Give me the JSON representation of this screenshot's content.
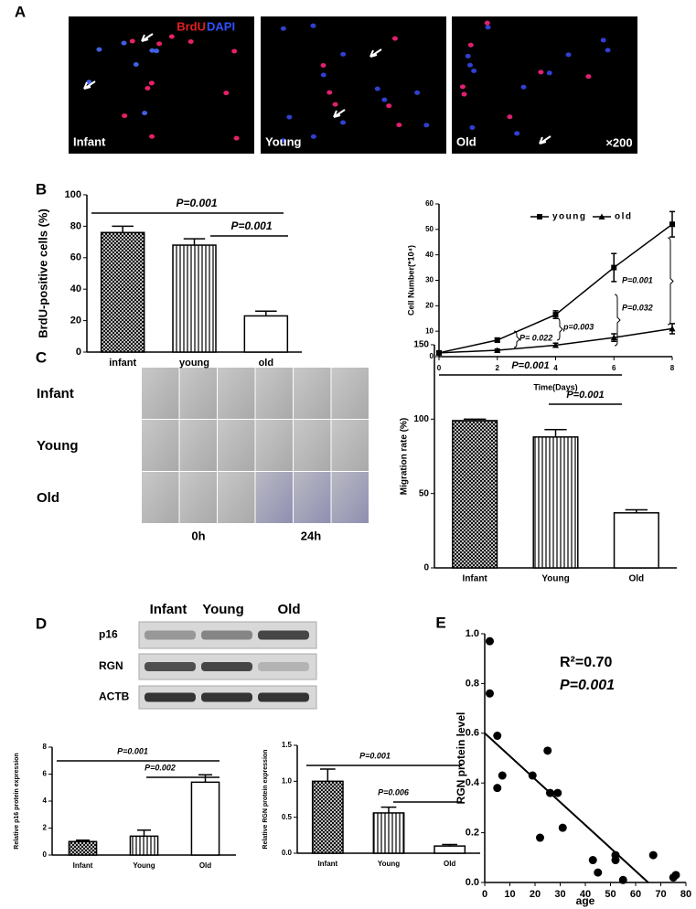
{
  "panels": [
    "A",
    "B",
    "C",
    "D",
    "E"
  ],
  "micrographs": {
    "stain": [
      "BrdU",
      "DAPI"
    ],
    "labels": [
      "Infant",
      "Young",
      "Old"
    ],
    "magnification": "×200"
  },
  "migration_images": {
    "rows": [
      "Infant",
      "Young",
      "Old"
    ],
    "times": [
      "0h",
      "24h"
    ]
  },
  "blot": {
    "columns": [
      "Infant",
      "Young",
      "Old"
    ],
    "rows": [
      "p16",
      "RGN",
      "ACTB"
    ]
  },
  "chart_data": [
    {
      "type": "bar",
      "ylabel": "BrdU-positive cells (%)",
      "categories": [
        "infant",
        "young",
        "old"
      ],
      "values": [
        76,
        68,
        23
      ],
      "errors": [
        4,
        4,
        3
      ],
      "patterns": [
        "crosshatch",
        "vertical",
        "none"
      ],
      "ylim": [
        0,
        100
      ],
      "yticks": [
        0,
        20,
        40,
        60,
        80,
        100
      ],
      "annotations": [
        "P=0.001",
        "P=0.001"
      ]
    },
    {
      "type": "line",
      "xlabel": "Time(Days)",
      "ylabel": "Cell Number(*10⁴)",
      "x": [
        0,
        2,
        4,
        6,
        8
      ],
      "series": [
        {
          "name": "young",
          "marker": "square",
          "values": [
            1.5,
            6.5,
            16.5,
            35,
            52
          ],
          "errors": [
            0.5,
            0.8,
            1.5,
            5.5,
            5
          ]
        },
        {
          "name": "old",
          "marker": "triangle",
          "values": [
            1.5,
            2.5,
            4.5,
            7.5,
            11
          ],
          "errors": [
            0.3,
            0.5,
            0.8,
            1.5,
            2
          ]
        }
      ],
      "xlim": [
        0,
        8
      ],
      "xticks": [
        0,
        2,
        4,
        6,
        8
      ],
      "ylim": [
        0,
        60
      ],
      "yticks": [
        0,
        10,
        20,
        30,
        40,
        50,
        60
      ],
      "legend": "top",
      "annotations": [
        "P= 0.022",
        "p=0.003",
        "P=0.032",
        "P=0.001"
      ]
    },
    {
      "type": "bar",
      "ylabel": "Migration rate (%)",
      "categories": [
        "Infant",
        "Young",
        "Old"
      ],
      "values": [
        99,
        88,
        37
      ],
      "errors": [
        1,
        5,
        2
      ],
      "patterns": [
        "crosshatch",
        "vertical",
        "none"
      ],
      "ylim": [
        0,
        150
      ],
      "yticks": [
        0,
        50,
        100,
        150
      ],
      "annotations": [
        "P=0.001",
        "P=0.001"
      ]
    },
    {
      "type": "bar",
      "ylabel": "Relative p16 protein expression",
      "categories": [
        "Infant",
        "Young",
        "Old"
      ],
      "values": [
        1.0,
        1.4,
        5.4
      ],
      "errors": [
        0.1,
        0.45,
        0.55
      ],
      "patterns": [
        "crosshatch",
        "vertical",
        "none"
      ],
      "ylim": [
        0,
        8
      ],
      "yticks": [
        0,
        2,
        4,
        6,
        8
      ],
      "annotations": [
        "P=0.001",
        "P=0.002"
      ]
    },
    {
      "type": "bar",
      "ylabel": "Relative RGN protein expression",
      "categories": [
        "Infant",
        "Young",
        "Old"
      ],
      "values": [
        1.0,
        0.56,
        0.1
      ],
      "errors": [
        0.17,
        0.08,
        0.02
      ],
      "patterns": [
        "crosshatch",
        "vertical",
        "none"
      ],
      "ylim": [
        0,
        1.5
      ],
      "yticks": [
        {
          "value": 0,
          "label": "0.0"
        },
        {
          "value": 0.5,
          "label": "0.5"
        },
        {
          "value": 1,
          "label": "1.0"
        },
        {
          "value": 1.5,
          "label": "1.5"
        }
      ],
      "annotations": [
        "P=0.001",
        "P=0.006"
      ]
    },
    {
      "type": "scatter",
      "xlabel": "age",
      "ylabel": "RGN protein level",
      "x": [
        2,
        2,
        5,
        5,
        7,
        19,
        22,
        25,
        26,
        29,
        31,
        43,
        45,
        52,
        52,
        55,
        67,
        75,
        76
      ],
      "values": [
        0.97,
        0.76,
        0.59,
        0.38,
        0.43,
        0.43,
        0.18,
        0.53,
        0.36,
        0.36,
        0.22,
        0.09,
        0.04,
        0.11,
        0.09,
        0.01,
        0.11,
        0.02,
        0.03
      ],
      "fit": {
        "x": [
          0,
          65
        ],
        "values": [
          0.6,
          0
        ]
      },
      "xlim": [
        0,
        80
      ],
      "xticks": [
        0,
        10,
        20,
        30,
        40,
        50,
        60,
        70,
        80
      ],
      "ylim": [
        0,
        1.0
      ],
      "yticks": [
        {
          "value": 0,
          "label": "0.0"
        },
        {
          "value": 0.2,
          "label": "0.2"
        },
        {
          "value": 0.4,
          "label": "0.4"
        },
        {
          "value": 0.6,
          "label": "0.6"
        },
        {
          "value": 0.8,
          "label": "0.8"
        },
        {
          "value": 1.0,
          "label": "1.0"
        }
      ],
      "annotations": [
        "R²=0.70",
        "P=0.001"
      ]
    }
  ]
}
